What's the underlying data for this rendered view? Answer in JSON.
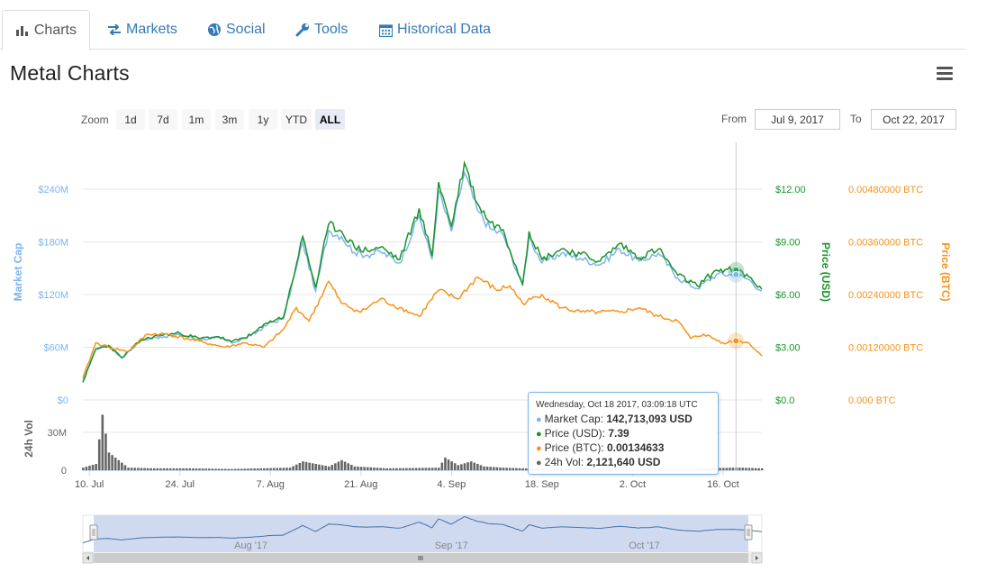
{
  "tabs": [
    {
      "label": "Charts",
      "icon": "bar-chart-icon",
      "active": true
    },
    {
      "label": "Markets",
      "icon": "exchange-icon",
      "active": false
    },
    {
      "label": "Social",
      "icon": "globe-icon",
      "active": false
    },
    {
      "label": "Tools",
      "icon": "wrench-icon",
      "active": false
    },
    {
      "label": "Historical Data",
      "icon": "calendar-icon",
      "active": false
    }
  ],
  "title": "Metal Charts",
  "range_selector": {
    "zoom_label": "Zoom",
    "buttons": [
      "1d",
      "7d",
      "1m",
      "3m",
      "1y",
      "YTD",
      "ALL"
    ],
    "selected": "ALL",
    "from_label": "From",
    "from_value": "Jul 9, 2017",
    "to_label": "To",
    "to_value": "Oct 22, 2017"
  },
  "tooltip": {
    "header": "Wednesday, Oct 18 2017, 03:09:18 UTC",
    "rows": [
      {
        "label": "Market Cap:",
        "value": "142,713,093 USD",
        "color": "#7cb5ec"
      },
      {
        "label": "Price (USD):",
        "value": "7.39",
        "color": "#1a9429"
      },
      {
        "label": "Price (BTC):",
        "value": "0.00134633",
        "color": "#f7931a"
      },
      {
        "label": "24h Vol:",
        "value": "2,121,640 USD",
        "color": "#666666"
      }
    ]
  },
  "chart_data": {
    "type": "line",
    "colors": {
      "market_cap": "#7cb5ec",
      "price_usd": "#1a9429",
      "price_btc": "#f7931a",
      "volume": "#666666",
      "navigator_fill": "#c7d3ef"
    },
    "x_ticks": [
      "10. Jul",
      "24. Jul",
      "7. Aug",
      "21. Aug",
      "4. Sep",
      "18. Sep",
      "2. Oct",
      "16. Oct"
    ],
    "x_range": [
      "2017-07-09",
      "2017-10-22"
    ],
    "navigator_ticks": [
      "Aug '17",
      "Sep '17",
      "Oct '17"
    ],
    "axes": {
      "market_cap": {
        "title": "Market Cap",
        "ticks": [
          "$0",
          "$60M",
          "$120M",
          "$180M",
          "$240M"
        ],
        "range": [
          0,
          240000000
        ]
      },
      "price_usd": {
        "title": "Price (USD)",
        "ticks": [
          "$0.0",
          "$3.00",
          "$6.00",
          "$9.00",
          "$12.00"
        ],
        "range": [
          0,
          12
        ]
      },
      "price_btc": {
        "title": "Price (BTC)",
        "ticks": [
          "0.000 BTC",
          "0.00120000 BTC",
          "0.00240000 BTC",
          "0.00360000 BTC",
          "0.00480000 BTC"
        ],
        "range": [
          0,
          0.0048
        ]
      },
      "volume": {
        "title": "24h Vol",
        "ticks": [
          "0",
          "30M"
        ],
        "range": [
          0,
          50000000
        ]
      }
    },
    "series": [
      {
        "name": "Price (USD)",
        "x": [
          "2017-07-09",
          "2017-07-11",
          "2017-07-13",
          "2017-07-15",
          "2017-07-18",
          "2017-07-21",
          "2017-07-24",
          "2017-07-27",
          "2017-07-30",
          "2017-08-01",
          "2017-08-04",
          "2017-08-07",
          "2017-08-09",
          "2017-08-11",
          "2017-08-12",
          "2017-08-14",
          "2017-08-16",
          "2017-08-18",
          "2017-08-20",
          "2017-08-22",
          "2017-08-24",
          "2017-08-27",
          "2017-08-30",
          "2017-09-01",
          "2017-09-02",
          "2017-09-04",
          "2017-09-06",
          "2017-09-08",
          "2017-09-10",
          "2017-09-12",
          "2017-09-15",
          "2017-09-16",
          "2017-09-18",
          "2017-09-21",
          "2017-09-24",
          "2017-09-27",
          "2017-09-30",
          "2017-10-03",
          "2017-10-06",
          "2017-10-09",
          "2017-10-12",
          "2017-10-15",
          "2017-10-18",
          "2017-10-20",
          "2017-10-22"
        ],
        "values": [
          1.0,
          2.9,
          3.1,
          2.4,
          3.4,
          3.7,
          3.8,
          3.5,
          3.6,
          3.3,
          3.7,
          4.5,
          4.7,
          7.7,
          9.3,
          6.4,
          10.0,
          9.6,
          8.7,
          8.5,
          8.7,
          8.0,
          10.9,
          8.2,
          12.4,
          9.9,
          13.5,
          11.2,
          10.1,
          9.7,
          6.6,
          9.6,
          8.0,
          8.6,
          8.3,
          7.9,
          8.9,
          8.1,
          8.6,
          7.1,
          6.5,
          7.4,
          7.4,
          7.0,
          6.3
        ]
      },
      {
        "name": "Market Cap",
        "x": [
          "2017-07-09",
          "2017-07-11",
          "2017-07-13",
          "2017-07-15",
          "2017-07-18",
          "2017-07-21",
          "2017-07-24",
          "2017-07-27",
          "2017-07-30",
          "2017-08-01",
          "2017-08-04",
          "2017-08-07",
          "2017-08-09",
          "2017-08-11",
          "2017-08-12",
          "2017-08-14",
          "2017-08-16",
          "2017-08-18",
          "2017-08-20",
          "2017-08-22",
          "2017-08-24",
          "2017-08-27",
          "2017-08-30",
          "2017-09-01",
          "2017-09-02",
          "2017-09-04",
          "2017-09-06",
          "2017-09-08",
          "2017-09-10",
          "2017-09-12",
          "2017-09-15",
          "2017-09-16",
          "2017-09-18",
          "2017-09-21",
          "2017-09-24",
          "2017-09-27",
          "2017-09-30",
          "2017-10-03",
          "2017-10-06",
          "2017-10-09",
          "2017-10-12",
          "2017-10-15",
          "2017-10-18",
          "2017-10-20",
          "2017-10-22"
        ],
        "values": [
          21000000,
          58000000,
          62000000,
          48000000,
          68000000,
          72000000,
          74000000,
          69000000,
          71000000,
          65000000,
          73000000,
          88000000,
          92000000,
          150000000,
          180000000,
          124000000,
          193000000,
          186000000,
          168000000,
          165000000,
          169000000,
          156000000,
          210000000,
          160000000,
          238000000,
          192000000,
          259000000,
          216000000,
          195000000,
          188000000,
          130000000,
          186000000,
          156000000,
          167000000,
          161000000,
          154000000,
          172000000,
          158000000,
          167000000,
          139000000,
          127000000,
          143000000,
          142713093,
          137000000,
          124000000
        ]
      },
      {
        "name": "Price (BTC)",
        "x": [
          "2017-07-09",
          "2017-07-11",
          "2017-07-13",
          "2017-07-16",
          "2017-07-19",
          "2017-07-22",
          "2017-07-25",
          "2017-07-28",
          "2017-07-31",
          "2017-08-03",
          "2017-08-06",
          "2017-08-09",
          "2017-08-11",
          "2017-08-13",
          "2017-08-16",
          "2017-08-18",
          "2017-08-21",
          "2017-08-24",
          "2017-08-27",
          "2017-08-30",
          "2017-09-02",
          "2017-09-05",
          "2017-09-08",
          "2017-09-11",
          "2017-09-13",
          "2017-09-15",
          "2017-09-18",
          "2017-09-21",
          "2017-09-24",
          "2017-09-27",
          "2017-09-30",
          "2017-10-03",
          "2017-10-06",
          "2017-10-09",
          "2017-10-11",
          "2017-10-13",
          "2017-10-16",
          "2017-10-18",
          "2017-10-20",
          "2017-10-22"
        ],
        "values": [
          0.0005,
          0.0013,
          0.0012,
          0.0011,
          0.0015,
          0.0015,
          0.0014,
          0.0013,
          0.0012,
          0.0013,
          0.0012,
          0.0016,
          0.0021,
          0.0018,
          0.0027,
          0.0022,
          0.002,
          0.0023,
          0.0021,
          0.0019,
          0.0025,
          0.0023,
          0.0028,
          0.0025,
          0.0026,
          0.0022,
          0.0024,
          0.0021,
          0.002,
          0.002,
          0.002,
          0.0021,
          0.0019,
          0.0018,
          0.0014,
          0.0015,
          0.0013,
          0.00134633,
          0.0013,
          0.001
        ]
      },
      {
        "name": "24h Vol",
        "x": [
          "2017-07-09",
          "2017-07-11",
          "2017-07-12",
          "2017-07-13",
          "2017-07-14",
          "2017-07-16",
          "2017-07-20",
          "2017-07-25",
          "2017-08-01",
          "2017-08-10",
          "2017-08-12",
          "2017-08-16",
          "2017-08-18",
          "2017-08-20",
          "2017-08-25",
          "2017-09-02",
          "2017-09-03",
          "2017-09-05",
          "2017-09-07",
          "2017-09-09",
          "2017-09-12",
          "2017-09-18",
          "2017-10-01",
          "2017-10-10",
          "2017-10-18",
          "2017-10-22"
        ],
        "values": [
          2000000,
          5000000,
          44000000,
          14000000,
          10000000,
          2000000,
          1500000,
          1500000,
          1000000,
          2000000,
          7000000,
          3000000,
          8000000,
          3000000,
          1500000,
          2000000,
          10000000,
          4000000,
          7000000,
          3000000,
          2000000,
          1000000,
          1000000,
          1000000,
          2121640,
          1500000
        ]
      }
    ]
  }
}
